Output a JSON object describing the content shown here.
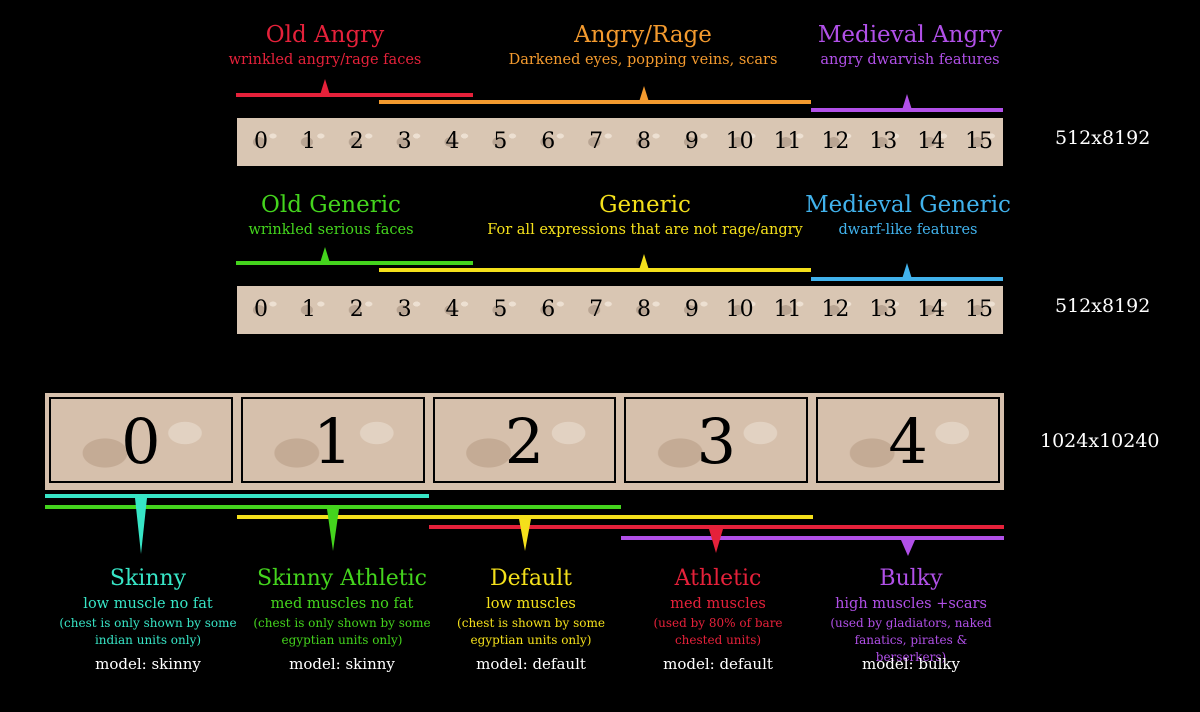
{
  "rows": {
    "row1": {
      "labels": [
        {
          "title": "Old Angry",
          "subtitle": "wrinkled angry/rage faces",
          "color": "#e5213a"
        },
        {
          "title": "Angry/Rage",
          "subtitle": "Darkened eyes, popping veins, scars",
          "color": "#f39a2e"
        },
        {
          "title": "Medieval Angry",
          "subtitle": "angry dwarvish features",
          "color": "#b150e8"
        }
      ],
      "cells": [
        "0",
        "1",
        "2",
        "3",
        "4",
        "5",
        "6",
        "7",
        "8",
        "9",
        "10",
        "11",
        "12",
        "13",
        "14",
        "15"
      ],
      "resolution": "512x8192"
    },
    "row2": {
      "labels": [
        {
          "title": "Old Generic",
          "subtitle": "wrinkled serious faces",
          "color": "#44d41d"
        },
        {
          "title": "Generic",
          "subtitle": "For all expressions that are not rage/angry",
          "color": "#f4e01b"
        },
        {
          "title": "Medieval Generic",
          "subtitle": "dwarf-like features",
          "color": "#41b2ec"
        }
      ],
      "cells": [
        "0",
        "1",
        "2",
        "3",
        "4",
        "5",
        "6",
        "7",
        "8",
        "9",
        "10",
        "11",
        "12",
        "13",
        "14",
        "15"
      ],
      "resolution": "512x8192"
    }
  },
  "bodies": {
    "cells": [
      "0",
      "1",
      "2",
      "3",
      "4"
    ],
    "resolution": "1024x10240",
    "types": [
      {
        "title": "Skinny",
        "desc": "low muscle no fat",
        "note": "(chest is only shown by some indian units only)",
        "model": "model: skinny",
        "color": "#37e5c6"
      },
      {
        "title": "Skinny Athletic",
        "desc": "med muscles no fat",
        "note": "(chest is only shown by some egyptian units only)",
        "model": "model: skinny",
        "color": "#44d41d"
      },
      {
        "title": "Default",
        "desc": "low muscles",
        "note": "(chest is shown by some egyptian units only)",
        "model": "model: default",
        "color": "#f4e01b"
      },
      {
        "title": "Athletic",
        "desc": "med muscles",
        "note": "(used by 80% of bare chested units)",
        "model": "model: default",
        "color": "#e5213a"
      },
      {
        "title": "Bulky",
        "desc": "high muscles +scars",
        "note": "(used by gladiators, naked fanatics, pirates & berserkers)",
        "model": "model: bulky",
        "color": "#b150e8"
      }
    ]
  }
}
